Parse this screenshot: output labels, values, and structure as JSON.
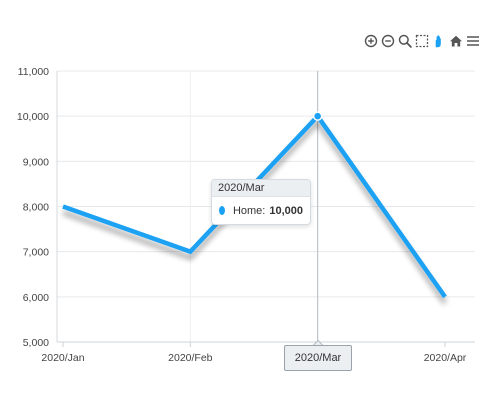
{
  "chart_data": {
    "type": "line",
    "categories": [
      "2020/Jan",
      "2020/Feb",
      "2020/Mar",
      "2020/Apr"
    ],
    "series": [
      {
        "name": "Home",
        "values": [
          8000,
          7000,
          10000,
          6000
        ],
        "color": "#1ba1f3"
      }
    ],
    "y_ticks": [
      "5,000",
      "6,000",
      "7,000",
      "8,000",
      "9,000",
      "10,000",
      "11,000"
    ],
    "ylim": [
      5000,
      11000
    ],
    "grid": true,
    "title": "",
    "xlabel": "",
    "ylabel": ""
  },
  "tooltip": {
    "title": "2020/Mar",
    "series_label": "Home:",
    "value": "10,000",
    "color": "#1ba1f3"
  },
  "crosshair": {
    "category": "2020/Mar",
    "label": "2020/Mar"
  },
  "toolbar": {
    "icons": [
      "zoom-in-icon",
      "zoom-out-icon",
      "magnifier-icon",
      "selection-icon",
      "pan-hand-icon",
      "home-icon",
      "menu-icon"
    ]
  }
}
